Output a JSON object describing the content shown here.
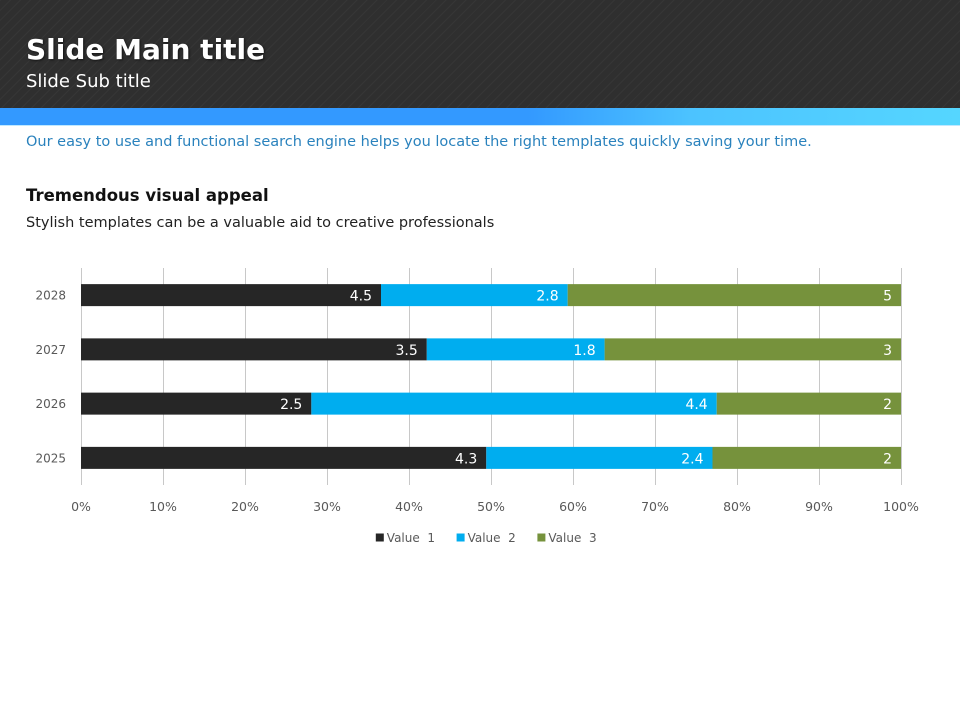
{
  "header": {
    "main_title": "Slide Main title",
    "sub_title": "Slide Sub title"
  },
  "tagline": "Our easy to use and functional search engine helps you locate the right templates quickly saving your time.",
  "section": {
    "heading": "Tremendous visual appeal",
    "text": "Stylish templates can be a valuable aid to creative professionals"
  },
  "colors": {
    "header_bg": "#2f2f2f",
    "accent_start": "#3399ff",
    "accent_end": "#55d6ff",
    "tagline": "#2a82bd"
  },
  "chart_data": {
    "type": "bar",
    "orientation": "horizontal",
    "stacking": "percent",
    "title": "",
    "xlabel": "",
    "ylabel": "",
    "categories": [
      "2025",
      "2026",
      "2027",
      "2028"
    ],
    "series": [
      {
        "name": "Value  1",
        "values": [
          4.3,
          2.5,
          3.5,
          4.5
        ],
        "color": "#262626"
      },
      {
        "name": "Value  2",
        "values": [
          2.4,
          4.4,
          1.8,
          2.8
        ],
        "color": "#00adef"
      },
      {
        "name": "Value  3",
        "values": [
          2,
          2,
          3,
          5
        ],
        "color": "#76923c"
      }
    ],
    "xlim": [
      0,
      100
    ],
    "x_ticks": [
      "0%",
      "10%",
      "20%",
      "30%",
      "40%",
      "50%",
      "60%",
      "70%",
      "80%",
      "90%",
      "100%"
    ],
    "grid": true,
    "data_labels": true,
    "legend_position": "bottom"
  }
}
